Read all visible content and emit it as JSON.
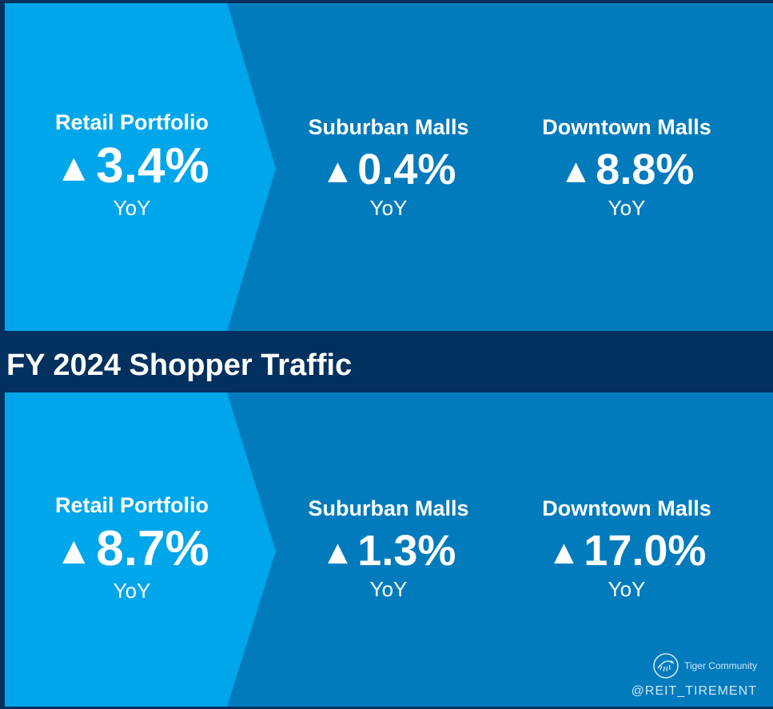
{
  "title": "FY 2024 Shopper Traffic",
  "top_section": {
    "metrics": [
      {
        "label": "Retail Portfolio",
        "arrow": "▲",
        "value": "3.4%",
        "period": "YoY"
      },
      {
        "label": "Suburban Malls",
        "arrow": "▲",
        "value": "0.4%",
        "period": "YoY"
      },
      {
        "label": "Downtown Malls",
        "arrow": "▲",
        "value": "8.8%",
        "period": "YoY"
      }
    ]
  },
  "bottom_section": {
    "metrics": [
      {
        "label": "Retail Portfolio",
        "arrow": "▲",
        "value": "8.7%",
        "period": "YoY"
      },
      {
        "label": "Suburban Malls",
        "arrow": "▲",
        "value": "1.3%",
        "period": "YoY"
      },
      {
        "label": "Downtown Malls",
        "arrow": "▲",
        "value": "17.0%",
        "period": "YoY"
      }
    ]
  },
  "watermark": {
    "brand": "Tiger Community",
    "handle": "@REIT_TIREMENT",
    "logo_icon": "tiger-community-logo"
  },
  "colors": {
    "dark_navy": "#03315f",
    "panel_blue": "#027bbd",
    "accent_blue": "#00a6ea",
    "text_white": "#ffffff"
  }
}
